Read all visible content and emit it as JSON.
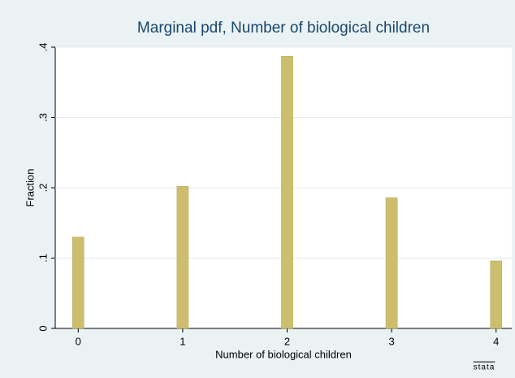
{
  "chart_data": {
    "type": "bar",
    "title": "Marginal pdf, Number of biological children",
    "x_label": "Number of biological children",
    "y_label": "Fraction",
    "x": [
      0,
      1,
      2,
      3,
      4
    ],
    "values": [
      0.13,
      0.202,
      0.387,
      0.186,
      0.096
    ],
    "color": "#cdbd6e",
    "bar_width": 0.11,
    "xlim": [
      -0.22,
      4.15
    ],
    "xticks": [
      0,
      1,
      2,
      3,
      4
    ],
    "ylim": [
      0,
      0.4
    ],
    "yticks": [
      0,
      {
        "value": 0.1,
        "label": ".1"
      },
      {
        "value": 0.2,
        "label": ".2"
      },
      {
        "value": 0.3,
        "label": ".3"
      },
      {
        "value": 0.4,
        "label": ".4"
      }
    ],
    "grid": true,
    "logo": "stata"
  }
}
